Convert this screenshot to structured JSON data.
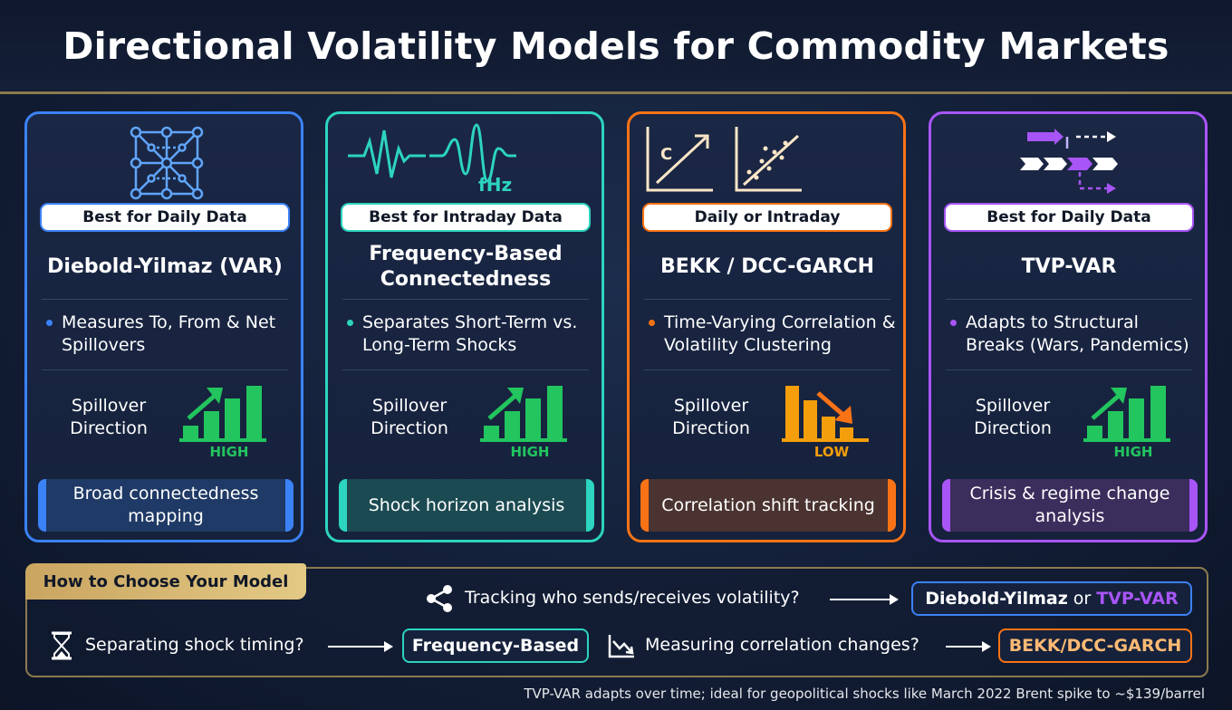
{
  "title": "Directional Volatility Models for Commodity Markets",
  "cards": [
    {
      "pill": "Best for Daily Data",
      "name": "Diebold-Yilmaz (VAR)",
      "bullet": "Measures To, From & Net Spillovers",
      "direction_label": "Spillover Direction",
      "level": "HIGH",
      "footer": "Broad connectedness mapping",
      "accent": "#3b82f6",
      "icon": "network-grid-icon"
    },
    {
      "pill": "Best for Intraday Data",
      "name": "Frequency-Based Connectedness",
      "bullet": "Separates Short-Term vs. Long-Term Shocks",
      "direction_label": "Spillover Direction",
      "level": "HIGH",
      "footer": "Shock horizon analysis",
      "accent": "#2dd4bf",
      "icon": "waveform-icon",
      "icon_text": "fHz"
    },
    {
      "pill": "Daily or Intraday",
      "name": "BEKK / DCC-GARCH",
      "bullet": "Time-Varying Correlation & Volatility Clustering",
      "direction_label": "Spillover Direction",
      "level": "LOW",
      "footer": "Correlation shift tracking",
      "accent": "#f97316",
      "icon": "correlation-chart-icon",
      "icon_text": "C"
    },
    {
      "pill": "Best for Daily Data",
      "name": "TVP-VAR",
      "bullet": "Adapts to Structural Breaks (Wars, Pandemics)",
      "direction_label": "Spillover Direction",
      "level": "HIGH",
      "footer": "Crisis & regime change analysis",
      "accent": "#a855f7",
      "icon": "time-shift-arrows-icon"
    }
  ],
  "guide": {
    "heading": "How to Choose Your Model",
    "rows": [
      {
        "question": "Tracking who sends/receives volatility?",
        "answer_a": "Diebold-Yilmaz",
        "answer_join": "or",
        "answer_b": "TVP-VAR",
        "icon": "share-icon"
      },
      {
        "question": "Separating shock timing?",
        "answer": "Frequency-Based",
        "icon": "hourglass-icon"
      },
      {
        "question": "Measuring correlation changes?",
        "answer": "BEKK/DCC-GARCH",
        "icon": "trend-down-icon"
      }
    ]
  },
  "note": "TVP-VAR adapts over time; ideal for geopolitical shocks like March 2022 Brent spike to ~$139/barrel",
  "colors": {
    "blue": "#3b82f6",
    "teal": "#2dd4bf",
    "orange": "#f97316",
    "purple": "#a855f7",
    "high": "#22c55e",
    "low": "#f59e0b",
    "gold": "#c9a560"
  }
}
